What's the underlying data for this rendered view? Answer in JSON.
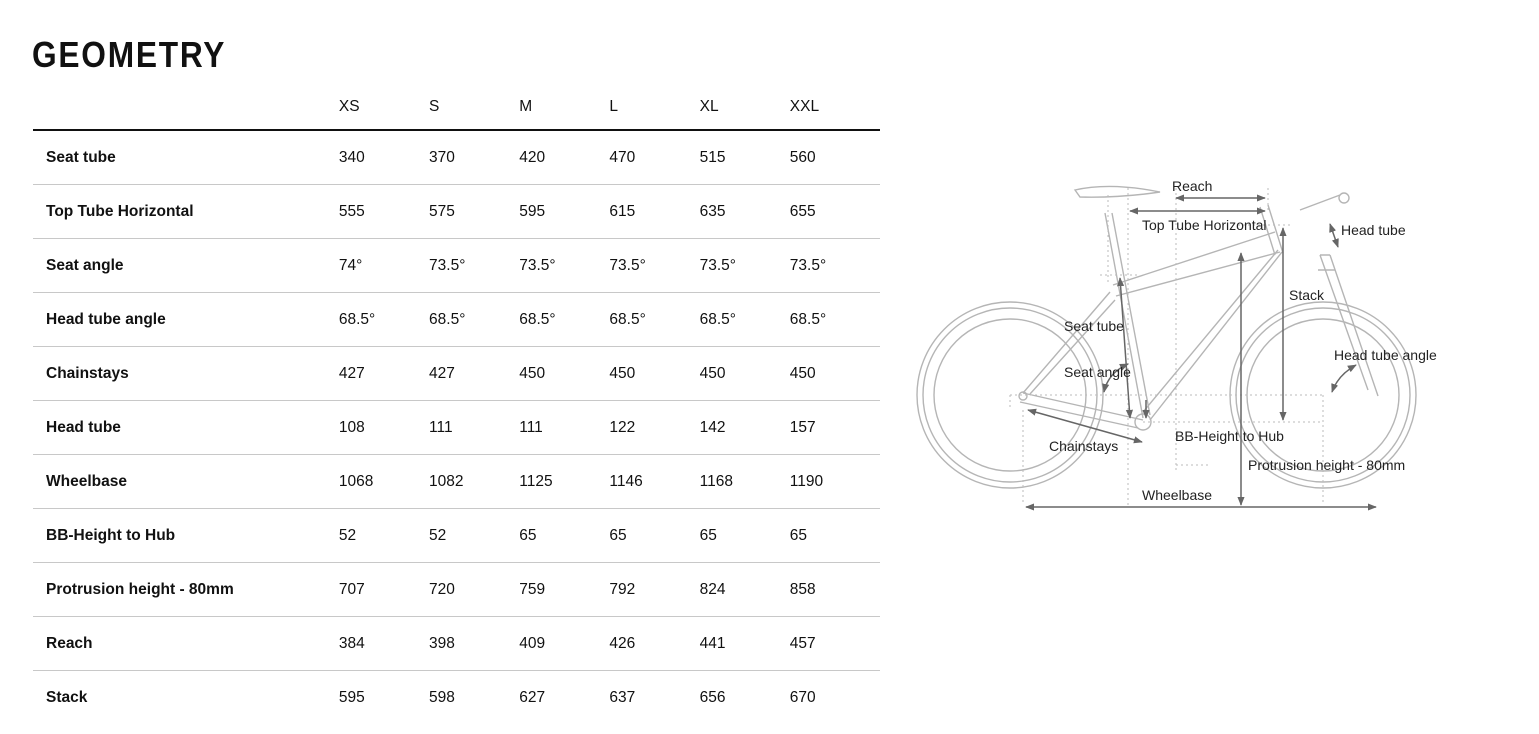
{
  "title": "GEOMETRY",
  "sizes": [
    "XS",
    "S",
    "M",
    "L",
    "XL",
    "XXL"
  ],
  "rows": [
    {
      "label": "Seat tube",
      "values": [
        "340",
        "370",
        "420",
        "470",
        "515",
        "560"
      ]
    },
    {
      "label": "Top Tube Horizontal",
      "values": [
        "555",
        "575",
        "595",
        "615",
        "635",
        "655"
      ]
    },
    {
      "label": "Seat angle",
      "values": [
        "74°",
        "73.5°",
        "73.5°",
        "73.5°",
        "73.5°",
        "73.5°"
      ]
    },
    {
      "label": "Head tube angle",
      "values": [
        "68.5°",
        "68.5°",
        "68.5°",
        "68.5°",
        "68.5°",
        "68.5°"
      ]
    },
    {
      "label": "Chainstays",
      "values": [
        "427",
        "427",
        "450",
        "450",
        "450",
        "450"
      ]
    },
    {
      "label": "Head tube",
      "values": [
        "108",
        "111",
        "111",
        "122",
        "142",
        "157"
      ]
    },
    {
      "label": "Wheelbase",
      "values": [
        "1068",
        "1082",
        "1125",
        "1146",
        "1168",
        "1190"
      ]
    },
    {
      "label": "BB-Height to Hub",
      "values": [
        "52",
        "52",
        "65",
        "65",
        "65",
        "65"
      ]
    },
    {
      "label": "Protrusion height - 80mm",
      "values": [
        "707",
        "720",
        "759",
        "792",
        "824",
        "858"
      ]
    },
    {
      "label": "Reach",
      "values": [
        "384",
        "398",
        "409",
        "426",
        "441",
        "457"
      ]
    },
    {
      "label": "Stack",
      "values": [
        "595",
        "598",
        "627",
        "637",
        "656",
        "670"
      ]
    }
  ],
  "diagram": {
    "reach": "Reach",
    "top_tube": "Top Tube Horizontal",
    "head_tube": "Head tube",
    "stack": "Stack",
    "seat_tube": "Seat tube",
    "seat_angle": "Seat angle",
    "head_tube_angle": "Head tube angle",
    "chainstays": "Chainstays",
    "bb_height": "BB-Height to Hub",
    "protrusion": "Protrusion height - 80mm",
    "wheelbase": "Wheelbase"
  }
}
